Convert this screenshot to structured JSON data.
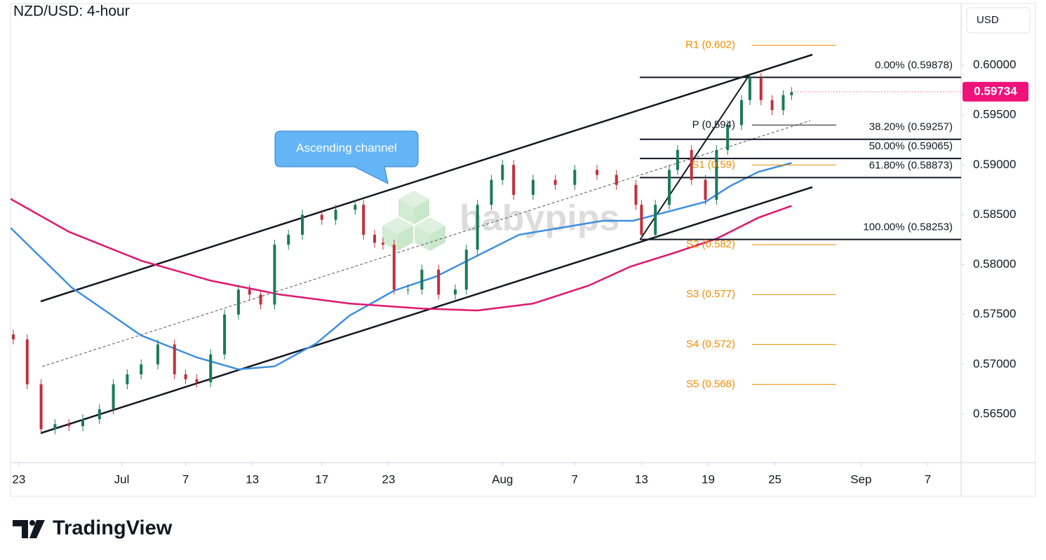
{
  "chart_data": {
    "type": "candlestick",
    "title": "NZD/USD: 4-hour",
    "currency": "USD",
    "annotation": "Ascending channel",
    "watermark": "babypips",
    "brand": "TradingView",
    "up_color": "#1b7a5a",
    "down_color": "#c2303b",
    "x": [
      1,
      6,
      11,
      16,
      21,
      26,
      32,
      37,
      42,
      47,
      53,
      59,
      63,
      67,
      72,
      77,
      82,
      86,
      90,
      95,
      100,
      105,
      112,
      117,
      124,
      127,
      131,
      134,
      138,
      143,
      148,
      154,
      160,
      164,
      168,
      173,
      177,
      181,
      188,
      196,
      203,
      211,
      218,
      225,
      227,
      232,
      237,
      240,
      245,
      250,
      254,
      258,
      263,
      266,
      270,
      274,
      278,
      281
    ],
    "open": [
      0.573,
      0.5725,
      0.568,
      0.5635,
      0.564,
      0.5638,
      0.5645,
      0.5655,
      0.568,
      0.569,
      0.57,
      0.572,
      0.569,
      0.5685,
      0.5682,
      0.571,
      0.575,
      0.5775,
      0.577,
      0.576,
      0.582,
      0.583,
      0.585,
      0.5845,
      0.5855,
      0.586,
      0.583,
      0.5822,
      0.582,
      0.5775,
      0.5775,
      0.5795,
      0.577,
      0.5775,
      0.5815,
      0.586,
      0.5885,
      0.59,
      0.587,
      0.5885,
      0.588,
      0.5895,
      0.589,
      0.588,
      0.586,
      0.583,
      0.586,
      0.5895,
      0.5915,
      0.5885,
      0.5865,
      0.5915,
      0.594,
      0.5965,
      0.5987,
      0.5965,
      0.5955,
      0.597
    ],
    "high": [
      0.5735,
      0.573,
      0.5685,
      0.5645,
      0.5645,
      0.565,
      0.566,
      0.5685,
      0.5695,
      0.5705,
      0.5725,
      0.5725,
      0.5695,
      0.569,
      0.5715,
      0.5755,
      0.578,
      0.578,
      0.5775,
      0.5825,
      0.5835,
      0.5855,
      0.5855,
      0.586,
      0.5865,
      0.5865,
      0.5835,
      0.5827,
      0.5825,
      0.578,
      0.58,
      0.58,
      0.578,
      0.582,
      0.5865,
      0.589,
      0.5905,
      0.5905,
      0.589,
      0.589,
      0.59,
      0.59,
      0.5895,
      0.5885,
      0.5865,
      0.5865,
      0.59,
      0.592,
      0.592,
      0.589,
      0.592,
      0.5945,
      0.597,
      0.5992,
      0.5992,
      0.597,
      0.5975,
      0.5978
    ],
    "low": [
      0.572,
      0.5675,
      0.563,
      0.563,
      0.5633,
      0.5633,
      0.564,
      0.565,
      0.5675,
      0.5685,
      0.5695,
      0.5685,
      0.568,
      0.5677,
      0.5677,
      0.5705,
      0.5745,
      0.5765,
      0.5755,
      0.5755,
      0.5815,
      0.5825,
      0.584,
      0.584,
      0.585,
      0.5825,
      0.5817,
      0.5815,
      0.577,
      0.577,
      0.577,
      0.5765,
      0.5765,
      0.577,
      0.581,
      0.5855,
      0.588,
      0.5865,
      0.5865,
      0.5875,
      0.5875,
      0.5885,
      0.5875,
      0.5855,
      0.5825,
      0.5825,
      0.5855,
      0.589,
      0.588,
      0.586,
      0.586,
      0.591,
      0.5935,
      0.596,
      0.596,
      0.595,
      0.595,
      0.5965
    ],
    "close": [
      0.5725,
      0.568,
      0.5635,
      0.564,
      0.5638,
      0.5645,
      0.5655,
      0.568,
      0.569,
      0.57,
      0.572,
      0.569,
      0.5685,
      0.5682,
      0.571,
      0.575,
      0.5775,
      0.577,
      0.576,
      0.582,
      0.583,
      0.585,
      0.5845,
      0.5855,
      0.586,
      0.583,
      0.5822,
      0.582,
      0.5775,
      0.5775,
      0.5795,
      0.577,
      0.5775,
      0.5815,
      0.586,
      0.5885,
      0.59,
      0.587,
      0.5885,
      0.588,
      0.5895,
      0.589,
      0.588,
      0.586,
      0.583,
      0.586,
      0.5895,
      0.5915,
      0.5885,
      0.5865,
      0.5915,
      0.594,
      0.5965,
      0.5987,
      0.5965,
      0.5955,
      0.597,
      0.5973
    ],
    "series": [
      {
        "color": "#3d8fe0",
        "x": [
          0,
          22,
          47,
          67,
          82,
          95,
          110,
          122,
          138,
          153,
          168,
          183,
          198,
          213,
          224,
          239,
          250,
          259,
          269,
          281
        ],
        "values": [
          0.5837,
          0.5777,
          0.5729,
          0.5707,
          0.5695,
          0.5698,
          0.5721,
          0.5749,
          0.5774,
          0.5788,
          0.5809,
          0.583,
          0.5837,
          0.5844,
          0.5844,
          0.5855,
          0.5863,
          0.5879,
          0.5893,
          0.5902
        ]
      },
      {
        "color": "#e0176f",
        "x": [
          0,
          21,
          47,
          72,
          97,
          122,
          148,
          168,
          188,
          208,
          223,
          239,
          254,
          269,
          281
        ],
        "values": [
          0.5866,
          0.5833,
          0.5804,
          0.5784,
          0.577,
          0.5761,
          0.5756,
          0.5754,
          0.5761,
          0.5779,
          0.5798,
          0.5812,
          0.5826,
          0.5847,
          0.5859
        ]
      }
    ],
    "last_price": 0.59734,
    "last_price_color": "#f0127b",
    "fibonacci": [
      {
        "label": "0.00% (0.59878)",
        "value": 0.59878
      },
      {
        "label": "38.20% (0.59257)",
        "value": 0.59257
      },
      {
        "label": "50.00% (0.59065)",
        "value": 0.59065
      },
      {
        "label": "61.80% (0.58873)",
        "value": 0.58873
      },
      {
        "label": "100.00% (0.58253)",
        "value": 0.58253
      }
    ],
    "pivots": [
      {
        "label": "R1 (0.602)",
        "value": 0.602,
        "color": "#f08c00"
      },
      {
        "label": "P (0.594)",
        "value": 0.594,
        "color": "#131722"
      },
      {
        "label": "S1 (0.59)",
        "value": 0.59,
        "color": "#f08c00"
      },
      {
        "label": "S2 (0.582)",
        "value": 0.582,
        "color": "#f08c00"
      },
      {
        "label": "S3 (0.577)",
        "value": 0.577,
        "color": "#f08c00"
      },
      {
        "label": "S4 (0.572)",
        "value": 0.572,
        "color": "#f08c00"
      },
      {
        "label": "S5 (0.568)",
        "value": 0.568,
        "color": "#f08c00"
      }
    ],
    "xlim": [
      0,
      342
    ],
    "ylim": [
      0.56015,
      0.60619
    ],
    "xticks": [
      {
        "value": 3,
        "label": "23"
      },
      {
        "value": 40,
        "label": "Jul"
      },
      {
        "value": 63,
        "label": "7"
      },
      {
        "value": 87,
        "label": "13"
      },
      {
        "value": 112,
        "label": "17"
      },
      {
        "value": 136,
        "label": "23"
      },
      {
        "value": 177,
        "label": "Aug"
      },
      {
        "value": 203,
        "label": "7"
      },
      {
        "value": 227,
        "label": "13"
      },
      {
        "value": 251,
        "label": "19"
      },
      {
        "value": 275,
        "label": "25"
      },
      {
        "value": 306,
        "label": "Sep"
      },
      {
        "value": 330,
        "label": "7"
      }
    ],
    "yticks": [
      {
        "value": 0.565,
        "label": "0.56500"
      },
      {
        "value": 0.57,
        "label": "0.57000"
      },
      {
        "value": 0.575,
        "label": "0.57500"
      },
      {
        "value": 0.58,
        "label": "0.58000"
      },
      {
        "value": 0.585,
        "label": "0.58500"
      },
      {
        "value": 0.59,
        "label": "0.59000"
      },
      {
        "value": 0.595,
        "label": "0.59500"
      },
      {
        "value": 0.6,
        "label": "0.60000"
      }
    ]
  }
}
